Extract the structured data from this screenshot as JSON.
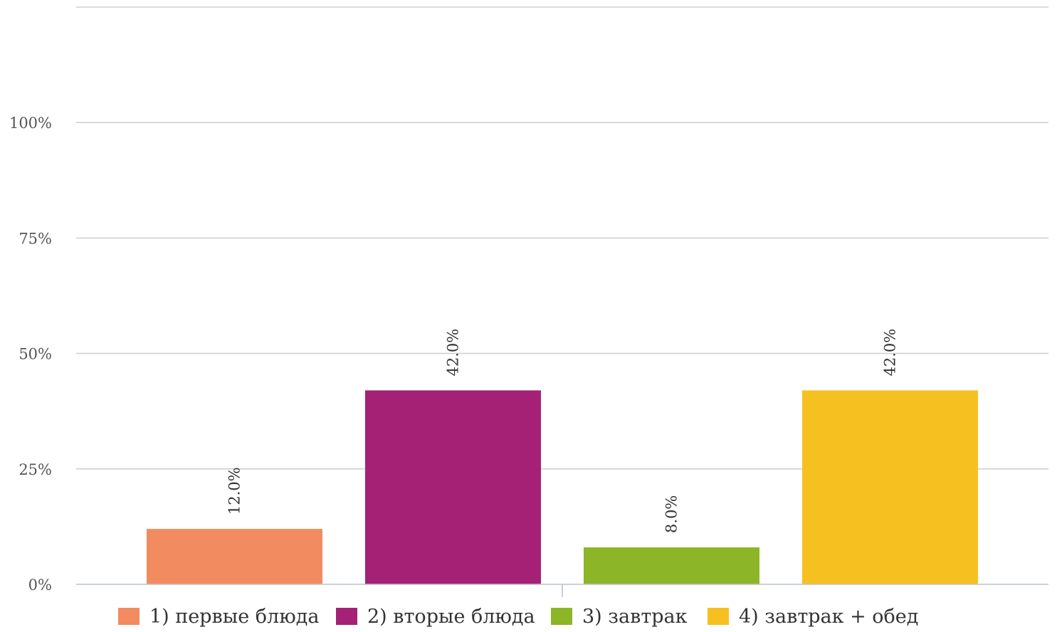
{
  "chart_data": {
    "type": "bar",
    "categories": [
      "1) первые блюда",
      "2) вторые блюда",
      "3) завтрак",
      "4) завтрак + обед"
    ],
    "values": [
      12.0,
      42.0,
      8.0,
      42.0
    ],
    "data_labels": [
      "12.0%",
      "42.0%",
      "8.0%",
      "42.0%"
    ],
    "colors": [
      "#f28b60",
      "#a52176",
      "#8db528",
      "#f6c020"
    ],
    "y_ticks": [
      "0%",
      "25%",
      "50%",
      "75%",
      "100%"
    ],
    "ylim": [
      0,
      125
    ],
    "grid": true,
    "legend_position": "bottom",
    "title": "",
    "xlabel": "",
    "ylabel": ""
  }
}
